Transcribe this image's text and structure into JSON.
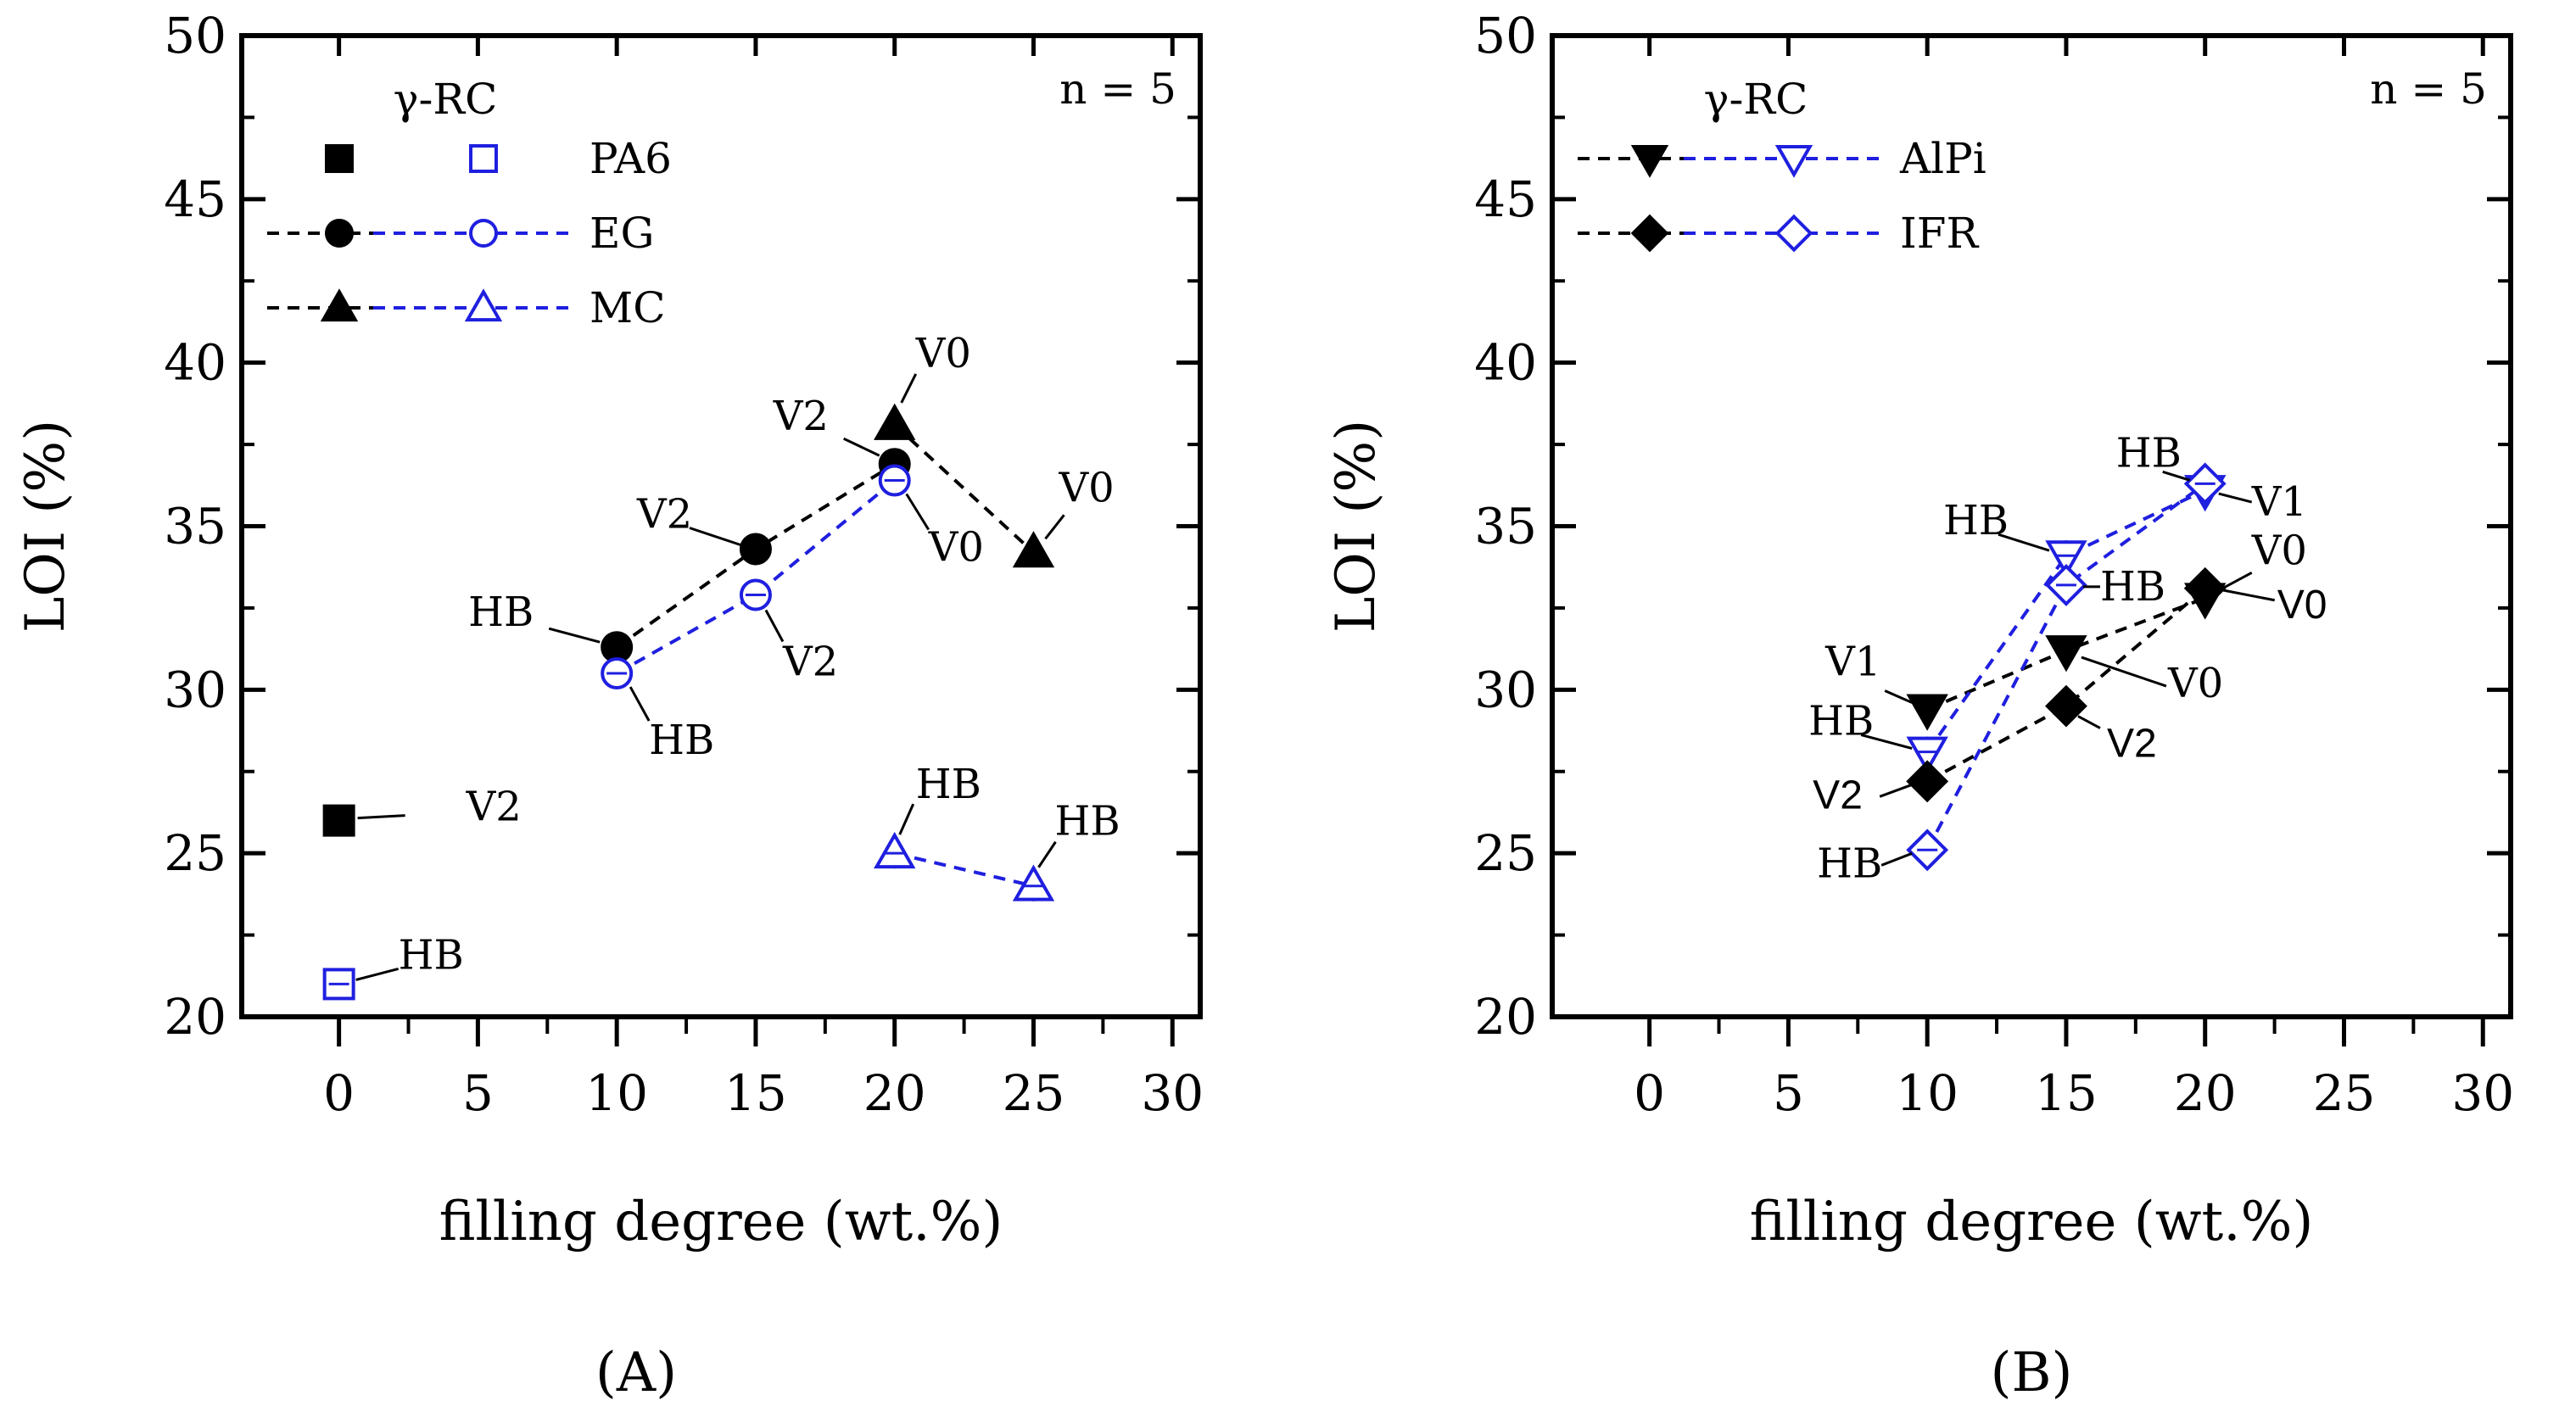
{
  "colors": {
    "black": "#000000",
    "blue": "#1f1fe0"
  },
  "chart_data": [
    {
      "panel": "A",
      "panel_label": "(A)",
      "type": "line",
      "xlabel": "filling degree (wt.%)",
      "ylabel": "LOI (%)",
      "xlim": [
        -3.5,
        31
      ],
      "ylim": [
        20,
        50
      ],
      "xticks": [
        0,
        5,
        10,
        15,
        20,
        25,
        30
      ],
      "yticks": [
        20,
        25,
        30,
        35,
        40,
        45,
        50
      ],
      "legend_title": "γ-RC",
      "n_label": "n = 5",
      "series": [
        {
          "name": "PA6",
          "group": "reference",
          "color": "black",
          "marker": "square",
          "filled": true,
          "line": false,
          "x": [
            0
          ],
          "y": [
            26
          ],
          "labels": [
            "V2"
          ]
        },
        {
          "name": "PA6 (γ-RC)",
          "group": "γ-RC",
          "color": "blue",
          "marker": "square",
          "filled": false,
          "line": false,
          "x": [
            0
          ],
          "y": [
            21
          ],
          "labels": [
            "HB"
          ]
        },
        {
          "name": "EG",
          "group": "reference",
          "color": "black",
          "marker": "circle",
          "filled": true,
          "line": true,
          "x": [
            10,
            15,
            20
          ],
          "y": [
            31.3,
            34.3,
            36.9
          ],
          "labels": [
            "HB",
            "V2",
            "V2"
          ]
        },
        {
          "name": "EG (γ-RC)",
          "group": "γ-RC",
          "color": "blue",
          "marker": "circle",
          "filled": false,
          "line": true,
          "x": [
            10,
            15,
            20
          ],
          "y": [
            30.5,
            32.9,
            36.4
          ],
          "labels": [
            "HB",
            "V2",
            "V0"
          ]
        },
        {
          "name": "MC",
          "group": "reference",
          "color": "black",
          "marker": "triangle-up",
          "filled": true,
          "line": true,
          "x": [
            20,
            25
          ],
          "y": [
            38.1,
            34.2
          ],
          "labels": [
            "V0",
            "V0"
          ]
        },
        {
          "name": "MC (γ-RC)",
          "group": "γ-RC",
          "color": "blue",
          "marker": "triangle-up",
          "filled": false,
          "line": true,
          "x": [
            20,
            25
          ],
          "y": [
            25,
            24
          ],
          "labels": [
            "HB",
            "HB"
          ]
        }
      ],
      "legend": [
        {
          "label": "PA6",
          "marker": "square",
          "line": false
        },
        {
          "label": "EG",
          "marker": "circle",
          "line": true
        },
        {
          "label": "MC",
          "marker": "triangle-up",
          "line": true
        }
      ]
    },
    {
      "panel": "B",
      "panel_label": "(B)",
      "type": "line",
      "xlabel": "filling degree (wt.%)",
      "ylabel": "LOI (%)",
      "xlim": [
        -3.5,
        31
      ],
      "ylim": [
        20,
        50
      ],
      "xticks": [
        0,
        5,
        10,
        15,
        20,
        25,
        30
      ],
      "yticks": [
        20,
        25,
        30,
        35,
        40,
        45,
        50
      ],
      "legend_title": "γ-RC",
      "n_label": "n = 5",
      "series": [
        {
          "name": "AlPi",
          "group": "reference",
          "color": "black",
          "marker": "triangle-down",
          "filled": true,
          "line": true,
          "x": [
            10,
            15,
            20
          ],
          "y": [
            29.4,
            31.2,
            32.8
          ],
          "labels": [
            "V1",
            "V0",
            "V0"
          ]
        },
        {
          "name": "AlPi (γ-RC)",
          "group": "γ-RC",
          "color": "blue",
          "marker": "triangle-down",
          "filled": false,
          "line": true,
          "x": [
            10,
            15,
            20
          ],
          "y": [
            28.1,
            34.1,
            36.1
          ],
          "labels": [
            "HB",
            "HB",
            "V1"
          ]
        },
        {
          "name": "IFR",
          "group": "reference",
          "color": "black",
          "marker": "diamond",
          "filled": true,
          "line": true,
          "x": [
            10,
            15,
            20
          ],
          "y": [
            27.2,
            29.5,
            33.1
          ],
          "labels": [
            "V2",
            "V2",
            "V0"
          ]
        },
        {
          "name": "IFR (γ-RC)",
          "group": "γ-RC",
          "color": "blue",
          "marker": "diamond",
          "filled": false,
          "line": true,
          "x": [
            10,
            15,
            20
          ],
          "y": [
            25.1,
            33.2,
            36.3
          ],
          "labels": [
            "HB",
            "HB",
            "HB"
          ]
        }
      ],
      "legend": [
        {
          "label": "AlPi",
          "marker": "triangle-down",
          "line": true
        },
        {
          "label": "IFR",
          "marker": "diamond",
          "line": true
        }
      ]
    }
  ]
}
